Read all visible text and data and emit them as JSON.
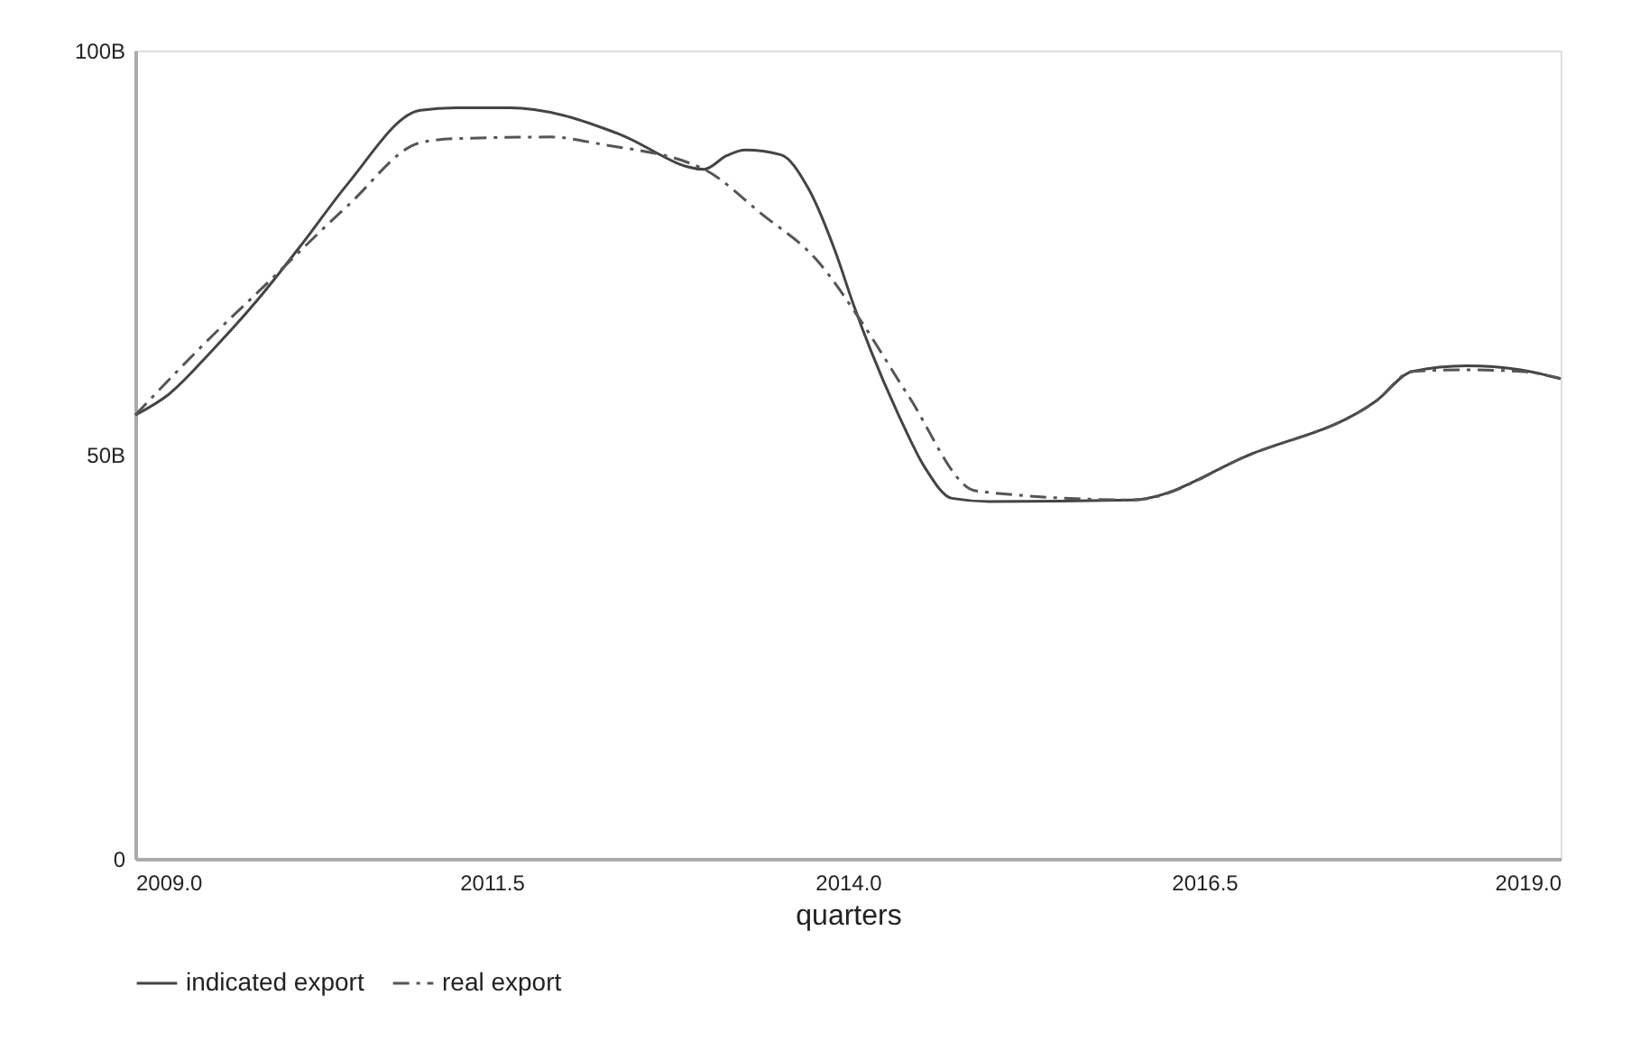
{
  "chart_data": {
    "type": "line",
    "xlabel": "quarters",
    "xlim": [
      2009.0,
      2019.0
    ],
    "xticks": [
      {
        "value": 2009,
        "label": "2009.0"
      },
      {
        "value": 2011.5,
        "label": "2011.5"
      },
      {
        "value": 2014,
        "label": "2014.0"
      },
      {
        "value": 2016.5,
        "label": "2016.5"
      },
      {
        "value": 2019,
        "label": "2019.0"
      }
    ],
    "ylim": [
      0,
      100
    ],
    "yticks": [
      0,
      {
        "value": 50,
        "label": "50B"
      },
      {
        "value": 100,
        "label": "100B"
      }
    ],
    "grid": false,
    "legend": "bottom",
    "marker": "none",
    "series": [
      {
        "name": "indicated export",
        "color": "#444444",
        "line_style": "solid",
        "x": [
          2009.0,
          2009.23,
          2009.54,
          2009.86,
          2010.18,
          2010.49,
          2011.0,
          2011.25,
          2011.63,
          2012.0,
          2012.39,
          2012.99,
          2013.15,
          2013.28,
          2013.53,
          2013.72,
          2013.91,
          2014.04,
          2014.16,
          2014.35,
          2014.54,
          2014.73,
          2014.99,
          2016.0,
          2016.82,
          2017.71,
          2017.96,
          2018.34,
          2018.72,
          2019.0
        ],
        "values": [
          54.9,
          57.4,
          62.9,
          69.2,
          76.3,
          83.5,
          92.6,
          92.9,
          92.9,
          92.0,
          89.7,
          85.3,
          87.0,
          87.7,
          87.1,
          83.0,
          75.2,
          68.5,
          62.9,
          55.1,
          48.4,
          44.6,
          44.2,
          44.4,
          50.0,
          56.7,
          60.3,
          61.0,
          60.5,
          59.4
        ]
      },
      {
        "name": "real export",
        "color": "#555555",
        "line_style": "dashed",
        "x": [
          2009.0,
          2009.54,
          2009.86,
          2010.49,
          2011.0,
          2011.25,
          2011.91,
          2012.27,
          2012.99,
          2013.4,
          2013.78,
          2014.1,
          2014.42,
          2014.9,
          2016.0,
          2016.82,
          2017.71,
          2017.96,
          2018.34,
          2018.72,
          2019.0
        ],
        "values": [
          54.9,
          64.7,
          70.1,
          80.8,
          88.6,
          89.1,
          89.3,
          88.4,
          85.3,
          79.7,
          74.1,
          66.3,
          57.4,
          45.5,
          44.4,
          50.0,
          56.7,
          60.3,
          60.5,
          60.3,
          59.4
        ]
      }
    ]
  }
}
